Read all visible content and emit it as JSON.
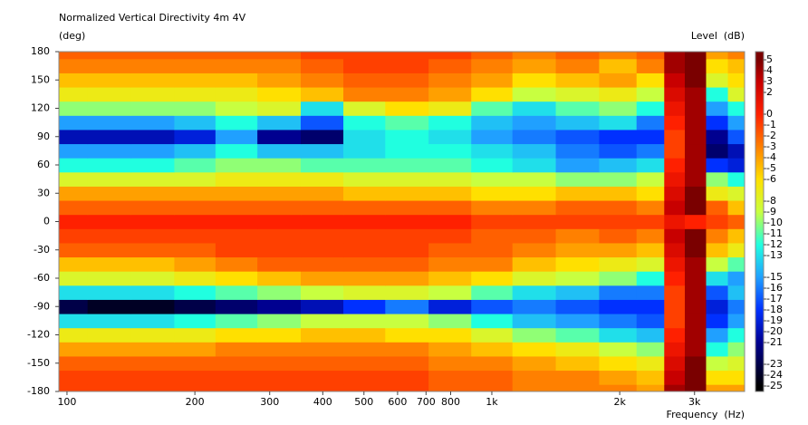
{
  "chart_data": {
    "type": "heatmap",
    "title": "Normalized Vertical Directivity 4m 4V",
    "y_label": "(deg)",
    "x_label": "Frequency  (Hz)",
    "z_label": "Level  (dB)",
    "x_log": true,
    "x": [
      100,
      125,
      160,
      200,
      250,
      315,
      400,
      500,
      630,
      800,
      1000,
      1250,
      1600,
      2000,
      2400,
      2700,
      3000,
      3400,
      3800
    ],
    "y": [
      -180,
      -165,
      -150,
      -135,
      -120,
      -105,
      -90,
      -75,
      -60,
      -45,
      -30,
      -15,
      0,
      15,
      30,
      45,
      60,
      75,
      90,
      105,
      120,
      135,
      150,
      165,
      180
    ],
    "xlim": [
      95.7,
      3935
    ],
    "ylim": [
      -180,
      180
    ],
    "zlim": [
      -25.5,
      5.75
    ],
    "xticks": [
      100,
      200,
      300,
      400,
      500,
      600,
      700,
      800,
      {
        "value": 1000,
        "label": "1k"
      },
      {
        "value": 2000,
        "label": "2k"
      },
      {
        "value": 3000,
        "label": "3k"
      }
    ],
    "yticks": [
      -180,
      -150,
      -120,
      -90,
      -60,
      -30,
      0,
      30,
      60,
      90,
      120,
      150,
      180
    ],
    "zticks": [
      5,
      4,
      3,
      2,
      0,
      -1,
      -2,
      -3,
      -4,
      -5,
      -6,
      -8,
      -9,
      -10,
      -11,
      -12,
      -13,
      -15,
      -16,
      -17,
      -18,
      -19,
      -20,
      -21,
      -23,
      -24,
      -25
    ],
    "colorscale": [
      [
        5,
        "#7a0000"
      ],
      [
        3,
        "#c80000"
      ],
      [
        0,
        "#ff2000"
      ],
      [
        -3,
        "#ff8000"
      ],
      [
        -6,
        "#ffe000"
      ],
      [
        -9,
        "#c8ff40"
      ],
      [
        -12,
        "#20ffe0"
      ],
      [
        -15,
        "#20a0ff"
      ],
      [
        -18,
        "#0030ff"
      ],
      [
        -21,
        "#000090"
      ],
      [
        -25,
        "#000000"
      ]
    ],
    "z": [
      [
        -1,
        -1,
        -1,
        -1,
        -1,
        -1,
        -1,
        -1,
        -1,
        -2,
        -2,
        -3,
        -3,
        -3,
        -4,
        4,
        5,
        -4,
        -4
      ],
      [
        -1,
        -1,
        -1,
        -1,
        -1,
        -1,
        -1,
        -1,
        -1,
        -2,
        -2,
        -3,
        -3,
        -4,
        -5,
        3,
        5,
        -6,
        -6
      ],
      [
        -2,
        -2,
        -2,
        -2,
        -2,
        -2,
        -2,
        -2,
        -2,
        -3,
        -3,
        -4,
        -5,
        -6,
        -7,
        2,
        5,
        -9,
        -8
      ],
      [
        -4,
        -4,
        -4,
        -4,
        -3,
        -3,
        -3,
        -3,
        -3,
        -4,
        -5,
        -6,
        -7,
        -9,
        -10,
        1,
        4,
        -12,
        -10
      ],
      [
        -7,
        -7,
        -7,
        -7,
        -6,
        -6,
        -5,
        -5,
        -6,
        -6,
        -8,
        -10,
        -11,
        -13,
        -14,
        0,
        4,
        -15,
        -12
      ],
      [
        -13,
        -13,
        -13,
        -12,
        -11,
        -10,
        -9,
        -9,
        -9,
        -10,
        -12,
        -14,
        -15,
        -16,
        -17,
        -1,
        4,
        -18,
        -15
      ],
      [
        -23,
        -24,
        -24,
        -23,
        -22,
        -21,
        -20,
        -18,
        -16,
        -19,
        -17,
        -16,
        -17,
        -18,
        -18,
        -1,
        4,
        -19,
        -16
      ],
      [
        -13,
        -13,
        -13,
        -12,
        -11,
        -10,
        -9,
        -8,
        -8,
        -9,
        -11,
        -13,
        -14,
        -16,
        -16,
        -1,
        4,
        -17,
        -14
      ],
      [
        -8,
        -8,
        -8,
        -7,
        -6,
        -5,
        -4,
        -4,
        -4,
        -5,
        -6,
        -8,
        -9,
        -10,
        -12,
        0,
        4,
        -13,
        -15
      ],
      [
        -5,
        -5,
        -5,
        -4,
        -3,
        -2,
        -2,
        -2,
        -2,
        -3,
        -3,
        -5,
        -6,
        -7,
        -8,
        1,
        4,
        -9,
        -11
      ],
      [
        -2,
        -2,
        -2,
        -2,
        -1,
        -1,
        -1,
        -1,
        -1,
        -2,
        -2,
        -3,
        -4,
        -4,
        -5,
        2,
        5,
        -5,
        -7
      ],
      [
        -1,
        -1,
        -1,
        -1,
        -1,
        -1,
        -1,
        -1,
        -1,
        -1,
        -2,
        -2,
        -3,
        -2,
        -3,
        3,
        5,
        -3,
        -5
      ],
      [
        0,
        0,
        0,
        0,
        0,
        0,
        0,
        0,
        0,
        0,
        -1,
        -1,
        -1,
        -1,
        -1,
        1,
        0,
        -1,
        -2
      ],
      [
        -2,
        -2,
        -2,
        -2,
        -2,
        -2,
        -2,
        -2,
        -2,
        -2,
        -3,
        -3,
        -2,
        -2,
        -3,
        3,
        5,
        -2,
        -5
      ],
      [
        -4,
        -4,
        -4,
        -4,
        -4,
        -4,
        -4,
        -5,
        -5,
        -5,
        -6,
        -6,
        -5,
        -5,
        -6,
        2,
        5,
        -7,
        -8
      ],
      [
        -8,
        -8,
        -8,
        -8,
        -7,
        -7,
        -7,
        -8,
        -8,
        -8,
        -9,
        -9,
        -10,
        -10,
        -9,
        1,
        4,
        -10,
        -12
      ],
      [
        -12,
        -12,
        -12,
        -11,
        -10,
        -10,
        -11,
        -11,
        -11,
        -11,
        -12,
        -13,
        -15,
        -14,
        -13,
        0,
        4,
        -18,
        -19
      ],
      [
        -15,
        -15,
        -15,
        -14,
        -12,
        -14,
        -14,
        -13,
        -12,
        -12,
        -13,
        -14,
        -16,
        -17,
        -16,
        -1,
        4,
        -22,
        -20
      ],
      [
        -20,
        -20,
        -20,
        -19,
        -15,
        -21,
        -22,
        -13,
        -12,
        -13,
        -15,
        -16,
        -17,
        -18,
        -18,
        -1,
        4,
        -21,
        -17
      ],
      [
        -15,
        -15,
        -15,
        -14,
        -12,
        -14,
        -17,
        -12,
        -11,
        -12,
        -14,
        -15,
        -14,
        -13,
        -16,
        0,
        4,
        -18,
        -15
      ],
      [
        -10,
        -10,
        -10,
        -10,
        -9,
        -8,
        -13,
        -8,
        -6,
        -7,
        -11,
        -13,
        -11,
        -10,
        -12,
        1,
        4,
        -15,
        -12
      ],
      [
        -7,
        -7,
        -7,
        -7,
        -7,
        -6,
        -5,
        -3,
        -3,
        -4,
        -6,
        -9,
        -8,
        -7,
        -9,
        2,
        4,
        -12,
        -8
      ],
      [
        -5,
        -5,
        -5,
        -5,
        -5,
        -4,
        -3,
        -2,
        -2,
        -3,
        -4,
        -6,
        -5,
        -4,
        -6,
        3,
        5,
        -8,
        -6
      ],
      [
        -3,
        -3,
        -3,
        -3,
        -3,
        -3,
        -2,
        -1,
        -1,
        -2,
        -3,
        -4,
        -3,
        -5,
        -3,
        4,
        5,
        -6,
        -5
      ],
      [
        -2,
        -2,
        -2,
        -2,
        -2,
        -2,
        -1,
        -1,
        -1,
        -1,
        -2,
        -3,
        -2,
        -3,
        -2,
        4,
        5,
        -4,
        -3
      ]
    ]
  }
}
